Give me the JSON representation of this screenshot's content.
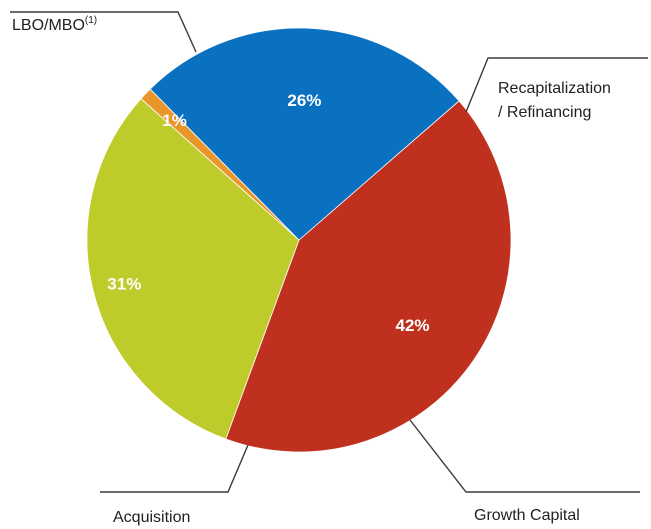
{
  "chart_data": {
    "type": "pie",
    "slices": [
      {
        "label": "LBO/MBO",
        "label_suffix": "(1)",
        "value": 42,
        "value_label": "42%",
        "color": "#c0301e"
      },
      {
        "label": "Recapitalization / Refinancing",
        "value": 31,
        "value_label": "31%",
        "color": "#bfcb2a"
      },
      {
        "label": "Growth Capital",
        "value": 1,
        "value_label": "1%",
        "color": "#e8952a"
      },
      {
        "label": "Acquisition",
        "value": 26,
        "value_label": "26%",
        "color": "#0a70c0"
      }
    ],
    "title": "",
    "legend": "none"
  }
}
